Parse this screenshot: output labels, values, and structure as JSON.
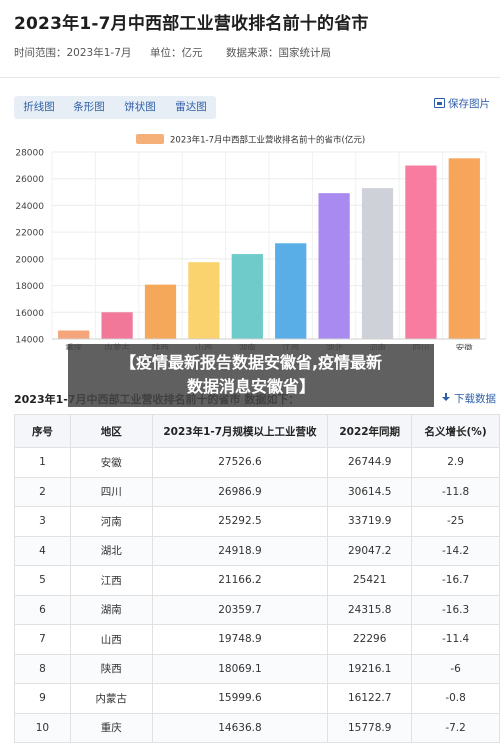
{
  "header": {
    "title": "2023年1-7月中西部工业营收排名前十的省市",
    "time_range": "时间范围：2023年1-7月",
    "unit": "单位：亿元",
    "source": "数据来源：国家统计局"
  },
  "toolbar": {
    "tabs": [
      "折线图",
      "条形图",
      "饼状图",
      "雷达图"
    ],
    "save_label": "保存图片"
  },
  "chart_data": {
    "type": "bar",
    "legend": "2023年1-7月中西部工业营收排名前十的省市(亿元)",
    "categories": [
      "重庆",
      "内蒙古",
      "陕西",
      "山西",
      "湖南",
      "江西",
      "湖北",
      "河南",
      "四川",
      "安徽"
    ],
    "values": [
      14636.8,
      15999.6,
      18069.1,
      19748.9,
      20359.7,
      21166.2,
      24918.9,
      25292.5,
      26986.9,
      27526.6
    ],
    "colors": [
      "#f4a57c",
      "#f2789a",
      "#f6a85a",
      "#fbd36e",
      "#6ecbc9",
      "#5aaee8",
      "#a98af0",
      "#cfd1d8",
      "#f77c9f",
      "#f6a55a"
    ],
    "ylim": [
      14000,
      28000
    ],
    "yticks": [
      14000,
      16000,
      18000,
      20000,
      22000,
      24000,
      26000,
      28000
    ],
    "grid": true,
    "legend_position": "top"
  },
  "banner": {
    "line1": "【疫情最新报告数据安徽省,疫情最新",
    "line2": "数据消息安徽省】"
  },
  "table": {
    "title": "2023年1-7月中西部工业营收排名前十的省市 数据如下：",
    "download_label": "下载数据",
    "headers": [
      "序号",
      "地区",
      "2023年1-7月规模以上工业营收",
      "2022年同期",
      "名义增长(%)"
    ],
    "rows": [
      [
        "1",
        "安徽",
        "27526.6",
        "26744.9",
        "2.9"
      ],
      [
        "2",
        "四川",
        "26986.9",
        "30614.5",
        "-11.8"
      ],
      [
        "3",
        "河南",
        "25292.5",
        "33719.9",
        "-25"
      ],
      [
        "4",
        "湖北",
        "24918.9",
        "29047.2",
        "-14.2"
      ],
      [
        "5",
        "江西",
        "21166.2",
        "25421",
        "-16.7"
      ],
      [
        "6",
        "湖南",
        "20359.7",
        "24315.8",
        "-16.3"
      ],
      [
        "7",
        "山西",
        "19748.9",
        "22296",
        "-11.4"
      ],
      [
        "8",
        "陕西",
        "18069.1",
        "19216.1",
        "-6"
      ],
      [
        "9",
        "内蒙古",
        "15999.6",
        "16122.7",
        "-0.8"
      ],
      [
        "10",
        "重庆",
        "14636.8",
        "15778.9",
        "-7.2"
      ]
    ]
  }
}
